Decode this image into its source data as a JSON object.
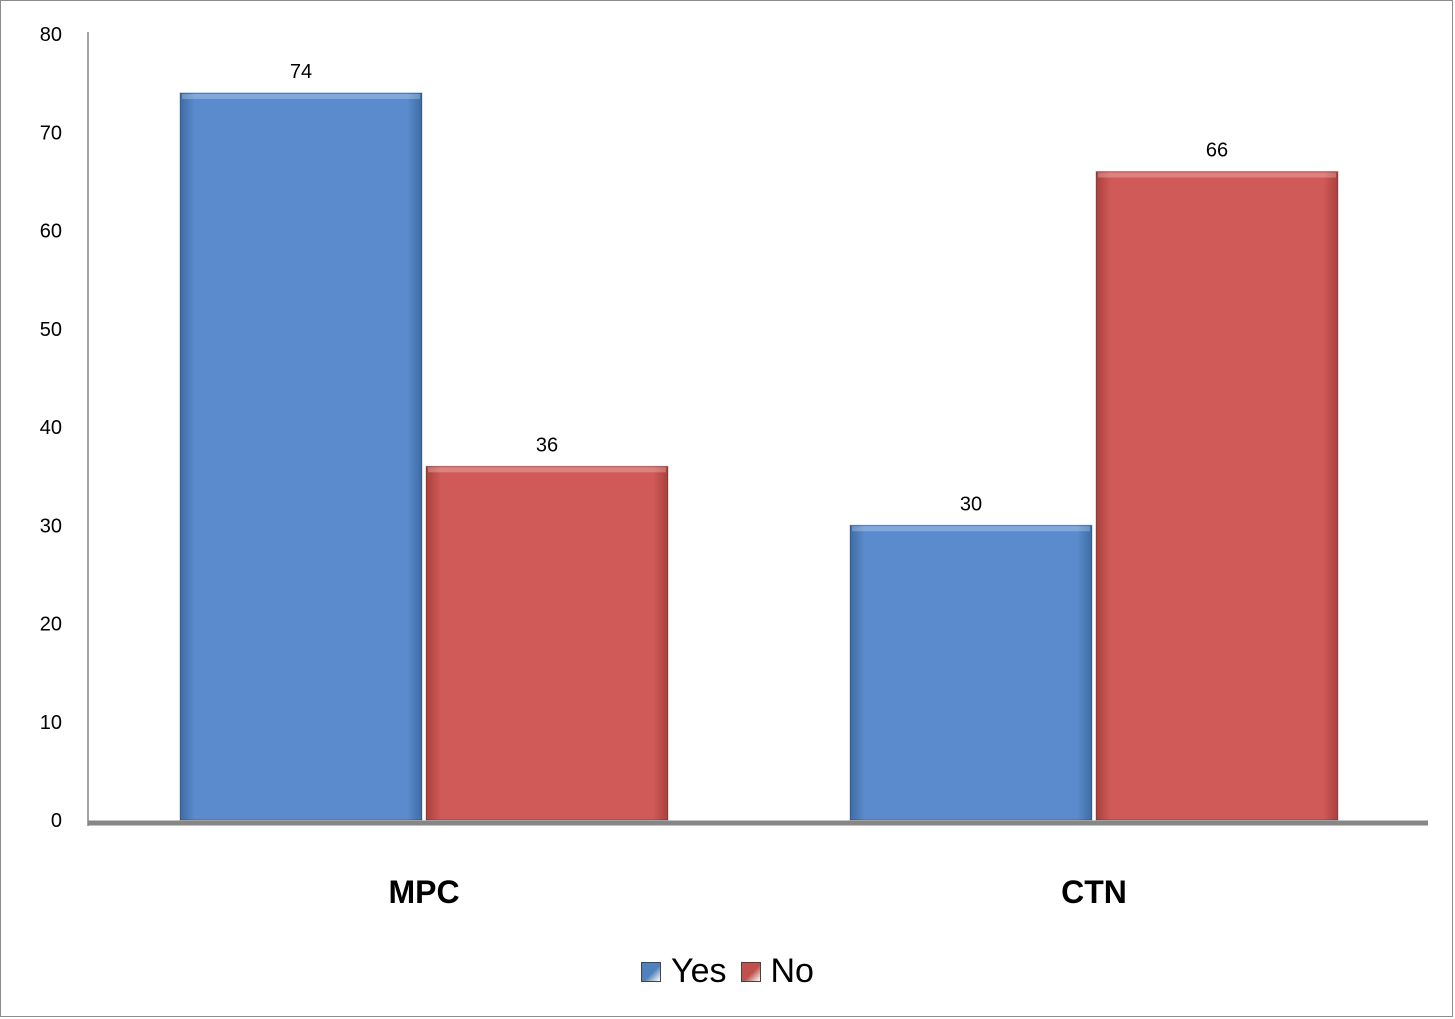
{
  "chart_data": {
    "type": "bar",
    "categories": [
      "MPC",
      "CTN"
    ],
    "series": [
      {
        "name": "Yes",
        "values": [
          74,
          30
        ],
        "color": "#4f81bd"
      },
      {
        "name": "No",
        "values": [
          36,
          66
        ],
        "color": "#c0504d"
      }
    ],
    "yticks": [
      "0",
      "10",
      "20",
      "30",
      "40",
      "50",
      "60",
      "70",
      "80"
    ],
    "ylim": [
      0,
      80
    ],
    "grid": false,
    "legend_position": "bottom"
  }
}
